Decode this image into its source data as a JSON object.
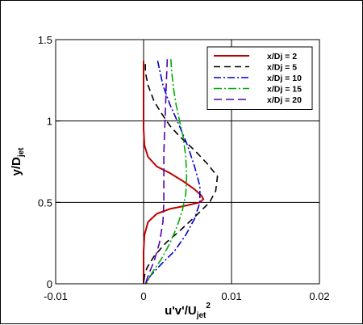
{
  "chart_data": {
    "type": "line",
    "title": "",
    "xlabel": {
      "main": "u'v'/U",
      "sub": "jet",
      "sup": "2"
    },
    "ylabel": {
      "main": "y/D",
      "sub": "jet"
    },
    "xlim": [
      -0.01,
      0.02
    ],
    "ylim": [
      0,
      1.5
    ],
    "xticks": [
      -0.01,
      0,
      0.01,
      0.02
    ],
    "xtick_labels": [
      "-0.01",
      "0",
      "0.01",
      "0.02"
    ],
    "yticks": [
      0,
      0.5,
      1,
      1.5
    ],
    "ytick_labels": [
      "0",
      "0.5",
      "1",
      "1.5"
    ],
    "grid": true,
    "legend_position": "top-right",
    "series": [
      {
        "name": "x/Dj = 2",
        "color": "#c00000",
        "dash": "solid",
        "points": [
          [
            0.0,
            1.37
          ],
          [
            0.0,
            1.2
          ],
          [
            0.0,
            0.95
          ],
          [
            0.0001,
            0.85
          ],
          [
            0.0005,
            0.78
          ],
          [
            0.0015,
            0.72
          ],
          [
            0.003,
            0.68
          ],
          [
            0.0045,
            0.63
          ],
          [
            0.0058,
            0.58
          ],
          [
            0.0066,
            0.54
          ],
          [
            0.0068,
            0.52
          ],
          [
            0.0064,
            0.5
          ],
          [
            0.0048,
            0.48
          ],
          [
            0.003,
            0.46
          ],
          [
            0.0015,
            0.43
          ],
          [
            0.0005,
            0.38
          ],
          [
            0.0001,
            0.3
          ],
          [
            0.0,
            0.2
          ],
          [
            0.0,
            0.0
          ]
        ]
      },
      {
        "name": "x/Dj = 5",
        "color": "#000000",
        "dash": "8,5",
        "points": [
          [
            0.0002,
            1.35
          ],
          [
            0.0002,
            1.3
          ],
          [
            0.0005,
            1.22
          ],
          [
            0.0012,
            1.12
          ],
          [
            0.002,
            1.05
          ],
          [
            0.003,
            0.97
          ],
          [
            0.0042,
            0.9
          ],
          [
            0.0058,
            0.82
          ],
          [
            0.0072,
            0.74
          ],
          [
            0.0084,
            0.66
          ],
          [
            0.0082,
            0.57
          ],
          [
            0.0075,
            0.5
          ],
          [
            0.006,
            0.42
          ],
          [
            0.0042,
            0.33
          ],
          [
            0.0025,
            0.25
          ],
          [
            0.0012,
            0.17
          ],
          [
            0.0004,
            0.1
          ],
          [
            0.0001,
            0.05
          ],
          [
            0.0,
            0.0
          ]
        ]
      },
      {
        "name": "x/Dj = 10",
        "color": "#0000cc",
        "dash": "9,3,2,3",
        "points": [
          [
            0.0016,
            1.37
          ],
          [
            0.0018,
            1.32
          ],
          [
            0.0022,
            1.22
          ],
          [
            0.003,
            1.1
          ],
          [
            0.004,
            0.98
          ],
          [
            0.005,
            0.85
          ],
          [
            0.0058,
            0.72
          ],
          [
            0.0064,
            0.6
          ],
          [
            0.0064,
            0.5
          ],
          [
            0.0058,
            0.4
          ],
          [
            0.0048,
            0.3
          ],
          [
            0.0035,
            0.2
          ],
          [
            0.002,
            0.12
          ],
          [
            0.0008,
            0.05
          ],
          [
            0.0002,
            0.0
          ]
        ]
      },
      {
        "name": "x/Dj = 15",
        "color": "#00aa00",
        "dash": "10,3,2,3",
        "points": [
          [
            0.0031,
            1.38
          ],
          [
            0.0032,
            1.3
          ],
          [
            0.0034,
            1.2
          ],
          [
            0.0037,
            1.1
          ],
          [
            0.0041,
            1.0
          ],
          [
            0.0045,
            0.9
          ],
          [
            0.0048,
            0.78
          ],
          [
            0.0049,
            0.66
          ],
          [
            0.0048,
            0.55
          ],
          [
            0.0044,
            0.45
          ],
          [
            0.0038,
            0.35
          ],
          [
            0.003,
            0.25
          ],
          [
            0.002,
            0.15
          ],
          [
            0.001,
            0.07
          ],
          [
            0.0003,
            0.0
          ]
        ]
      },
      {
        "name": "x/Dj = 20",
        "color": "#5500aa",
        "dash": "10,5",
        "points": [
          [
            0.0027,
            1.38
          ],
          [
            0.0026,
            1.25
          ],
          [
            0.0025,
            1.1
          ],
          [
            0.0024,
            0.95
          ],
          [
            0.0023,
            0.8
          ],
          [
            0.0023,
            0.65
          ],
          [
            0.0023,
            0.5
          ],
          [
            0.0022,
            0.38
          ],
          [
            0.0018,
            0.25
          ],
          [
            0.0012,
            0.14
          ],
          [
            0.0006,
            0.06
          ],
          [
            0.0002,
            0.0
          ]
        ]
      }
    ]
  }
}
